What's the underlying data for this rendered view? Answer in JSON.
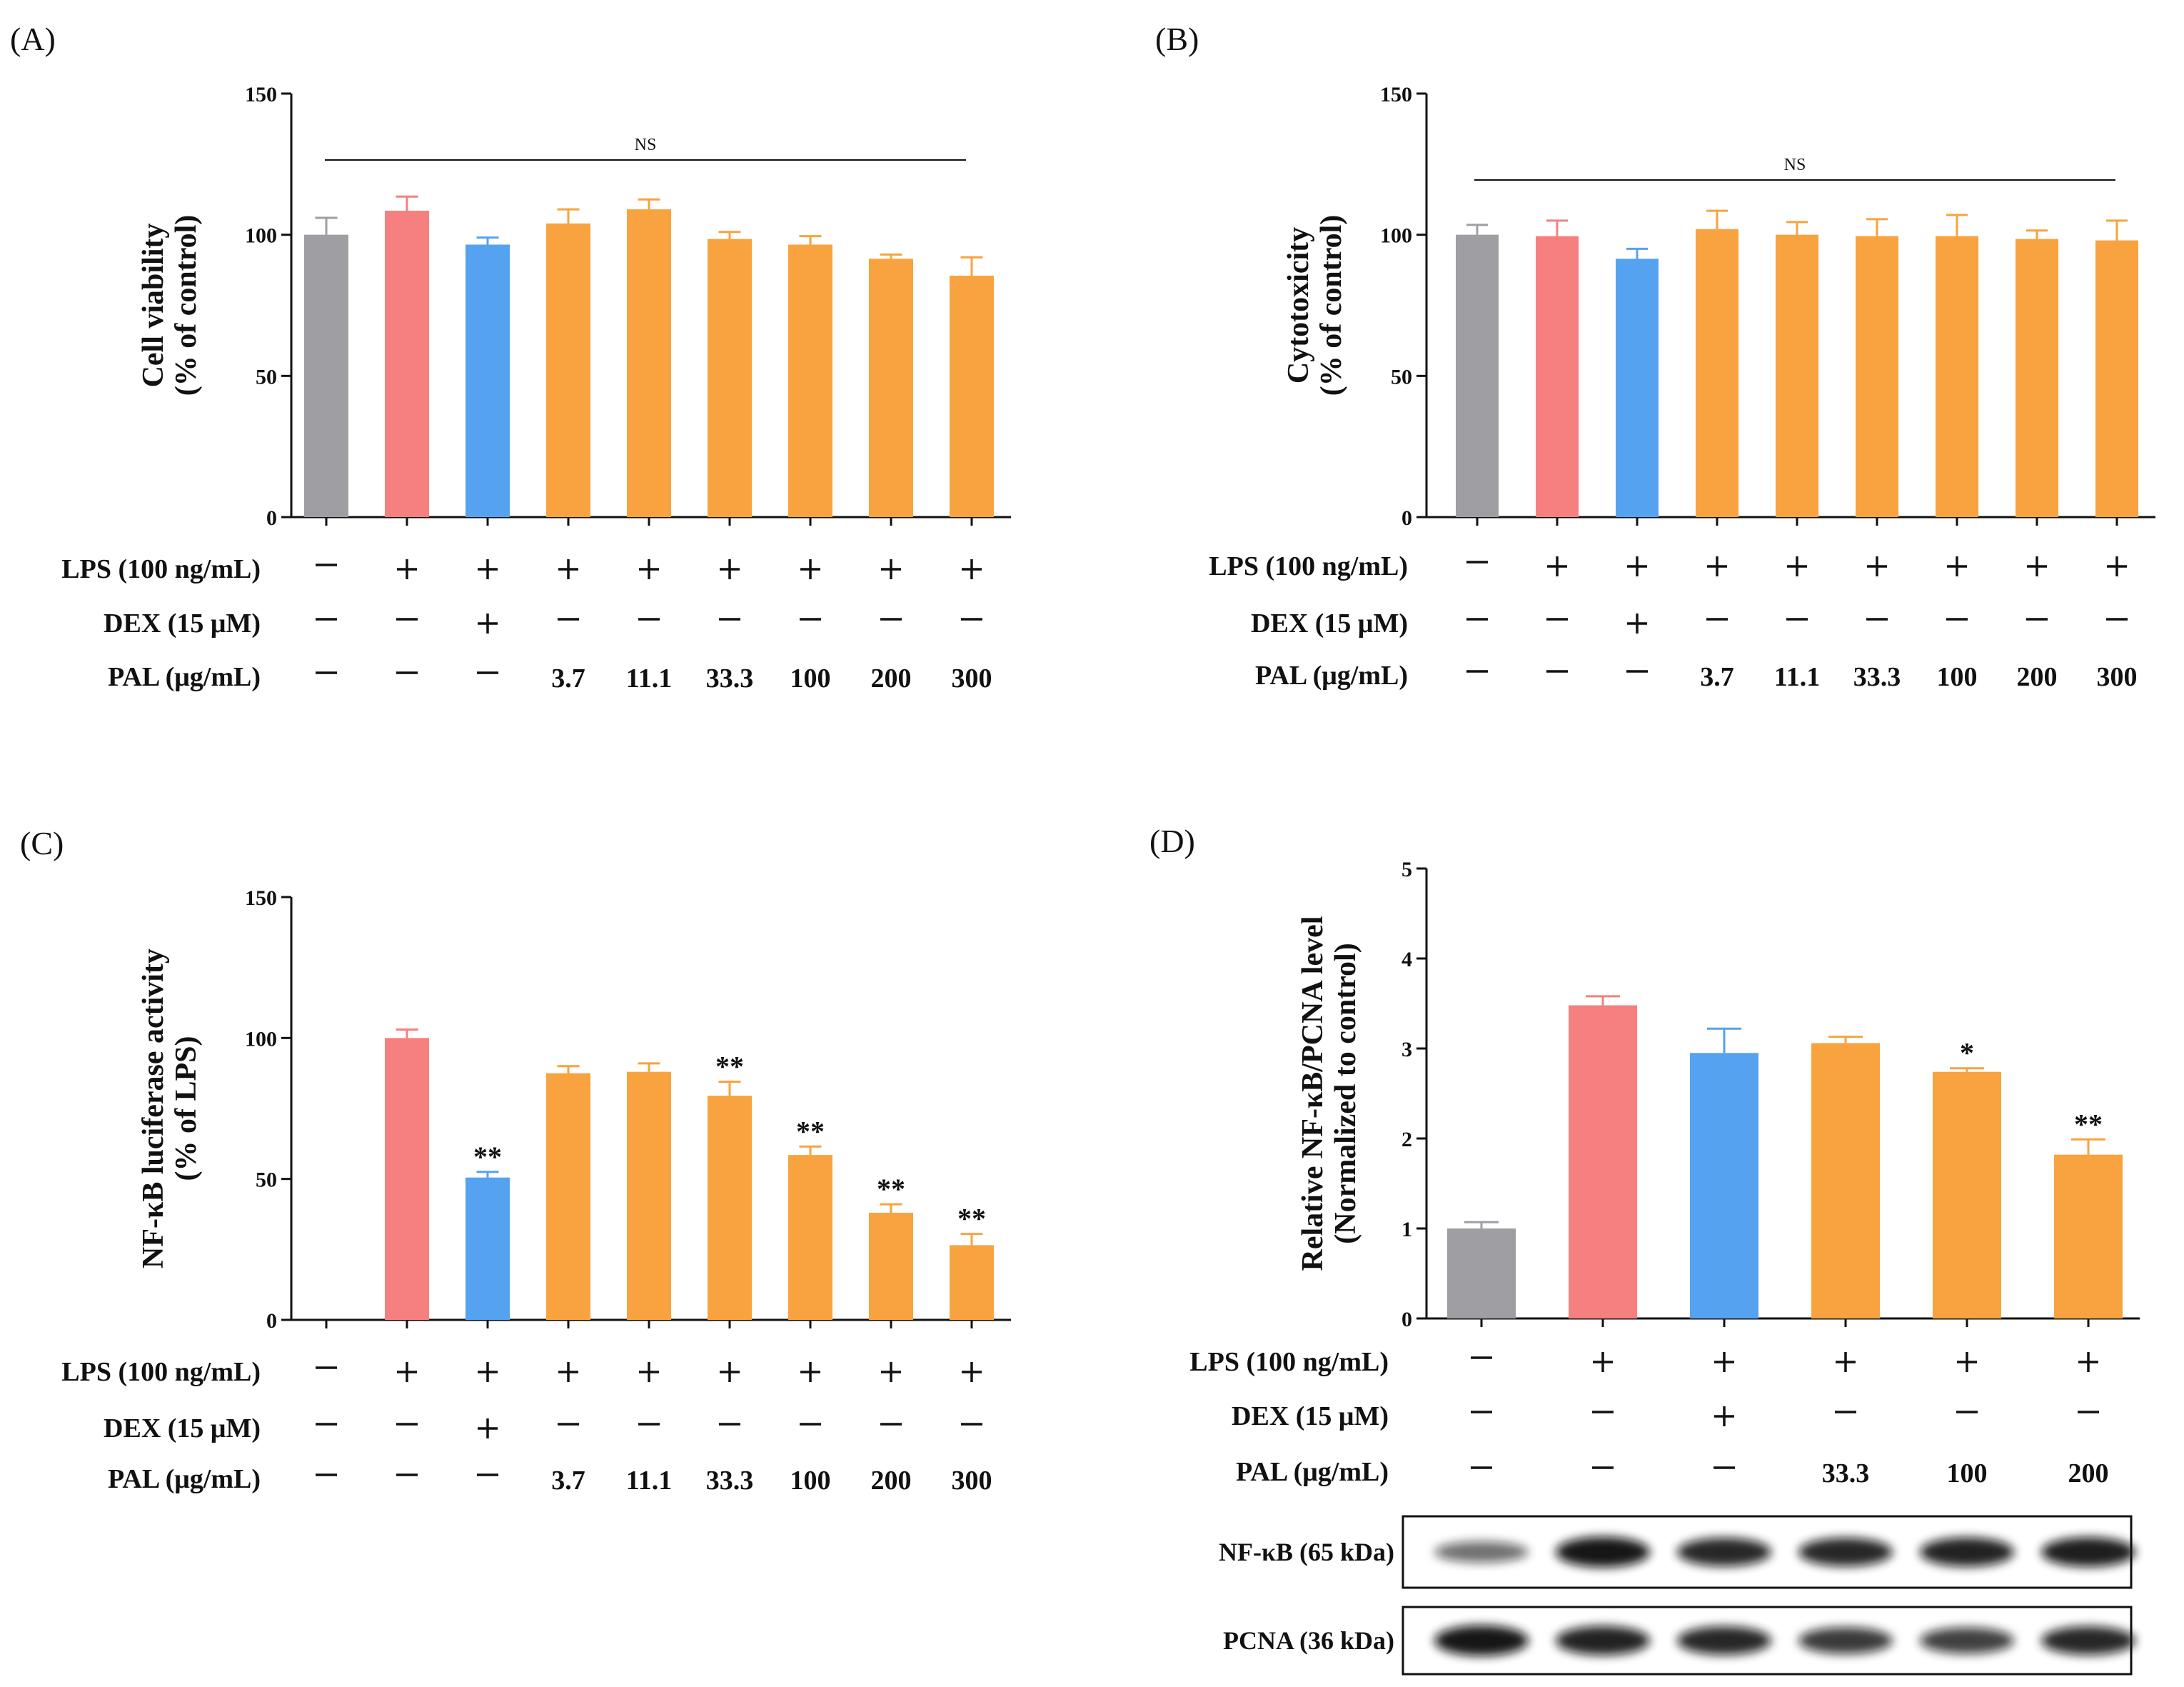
{
  "colors": {
    "control": "#9e9ea3",
    "lps": "#f5807f",
    "dex": "#55a2f0",
    "pal": "#f8a33f",
    "axis": "#111111"
  },
  "chart_data": [
    {
      "panel": "(A)",
      "type": "bar",
      "ylabel": [
        "Cell viability",
        "(% of control)"
      ],
      "ylim": [
        0,
        150
      ],
      "yticks": [
        "0",
        "50",
        "100",
        "150"
      ],
      "ns_label": "NS",
      "values": [
        100,
        108.5,
        96.5,
        104,
        109,
        98.5,
        96.5,
        91.5,
        85.5
      ],
      "errors": [
        6,
        5,
        2.5,
        5,
        3.5,
        2.5,
        3,
        1.5,
        6.5
      ],
      "bar_colors": [
        "control",
        "lps",
        "dex",
        "pal",
        "pal",
        "pal",
        "pal",
        "pal",
        "pal"
      ],
      "sig": [
        "",
        "",
        "",
        "",
        "",
        "",
        "",
        "",
        ""
      ],
      "treatment_labels": [
        "LPS (100 ng/mL)",
        "DEX (15 μM)",
        "PAL (μg/mL)"
      ],
      "treatments": [
        [
          "—",
          "+",
          "+",
          "+",
          "+",
          "+",
          "+",
          "+",
          "+"
        ],
        [
          "—",
          "—",
          "+",
          "—",
          "—",
          "—",
          "—",
          "—",
          "—"
        ],
        [
          "—",
          "—",
          "—",
          "3.7",
          "11.1",
          "33.3",
          "100",
          "200",
          "300"
        ]
      ]
    },
    {
      "panel": "(B)",
      "type": "bar",
      "ylabel": [
        "Cytotoxicity",
        "(% of control)"
      ],
      "ylim": [
        0,
        150
      ],
      "yticks": [
        "0",
        "50",
        "100",
        "150"
      ],
      "ns_label": "NS",
      "values": [
        100,
        99.5,
        91.5,
        102,
        100,
        99.5,
        99.5,
        98.5,
        98
      ],
      "errors": [
        3.5,
        5.5,
        3.5,
        6.5,
        4.5,
        6,
        7.5,
        3,
        7
      ],
      "bar_colors": [
        "control",
        "lps",
        "dex",
        "pal",
        "pal",
        "pal",
        "pal",
        "pal",
        "pal"
      ],
      "sig": [
        "",
        "",
        "",
        "",
        "",
        "",
        "",
        "",
        ""
      ],
      "treatment_labels": [
        "LPS (100 ng/mL)",
        "DEX (15 μM)",
        "PAL (μg/mL)"
      ],
      "treatments": [
        [
          "—",
          "+",
          "+",
          "+",
          "+",
          "+",
          "+",
          "+",
          "+"
        ],
        [
          "—",
          "—",
          "+",
          "—",
          "—",
          "—",
          "—",
          "—",
          "—"
        ],
        [
          "—",
          "—",
          "—",
          "3.7",
          "11.1",
          "33.3",
          "100",
          "200",
          "300"
        ]
      ]
    },
    {
      "panel": "(C)",
      "type": "bar",
      "ylabel": [
        "NF-κB luciferase activity",
        "(% of LPS)"
      ],
      "ylim": [
        0,
        150
      ],
      "yticks": [
        "0",
        "50",
        "100",
        "150"
      ],
      "values": [
        0,
        100,
        50.5,
        87.5,
        88,
        79.5,
        58.5,
        38,
        26.5
      ],
      "errors": [
        0,
        3,
        2,
        2.5,
        3,
        5,
        3,
        3,
        4
      ],
      "bar_colors": [
        "control",
        "lps",
        "dex",
        "pal",
        "pal",
        "pal",
        "pal",
        "pal",
        "pal"
      ],
      "sig": [
        "",
        "",
        "**",
        "",
        "",
        "**",
        "**",
        "**",
        "**"
      ],
      "treatment_labels": [
        "LPS (100 ng/mL)",
        "DEX (15 μM)",
        "PAL (μg/mL)"
      ],
      "treatments": [
        [
          "—",
          "+",
          "+",
          "+",
          "+",
          "+",
          "+",
          "+",
          "+"
        ],
        [
          "—",
          "—",
          "+",
          "—",
          "—",
          "—",
          "—",
          "—",
          "—"
        ],
        [
          "—",
          "—",
          "—",
          "3.7",
          "11.1",
          "33.3",
          "100",
          "200",
          "300"
        ]
      ]
    },
    {
      "panel": "(D)",
      "type": "bar",
      "ylabel": [
        "Relative NF-κB/PCNA level",
        "(Normalized to control)"
      ],
      "ylim": [
        0,
        5
      ],
      "yticks": [
        "0",
        "1",
        "2",
        "3",
        "4",
        "5"
      ],
      "values": [
        1,
        3.48,
        2.95,
        3.06,
        2.74,
        1.82
      ],
      "errors": [
        0.07,
        0.1,
        0.27,
        0.07,
        0.04,
        0.17
      ],
      "bar_colors": [
        "control",
        "lps",
        "dex",
        "pal",
        "pal",
        "pal"
      ],
      "sig": [
        "",
        "",
        "",
        "",
        "*",
        "**"
      ],
      "treatment_labels": [
        "LPS (100 ng/mL)",
        "DEX (15 μM)",
        "PAL (μg/mL)"
      ],
      "treatments": [
        [
          "—",
          "+",
          "+",
          "+",
          "+",
          "+"
        ],
        [
          "—",
          "—",
          "+",
          "—",
          "—",
          "—"
        ],
        [
          "—",
          "—",
          "—",
          "33.3",
          "100",
          "200"
        ]
      ],
      "blots": [
        {
          "label": "NF-κB (65 kDa)",
          "intensity": [
            0.45,
            0.95,
            0.85,
            0.85,
            0.88,
            0.9
          ]
        },
        {
          "label": "PCNA (36 kDa)",
          "intensity": [
            0.95,
            0.88,
            0.85,
            0.75,
            0.72,
            0.85
          ]
        }
      ]
    }
  ]
}
